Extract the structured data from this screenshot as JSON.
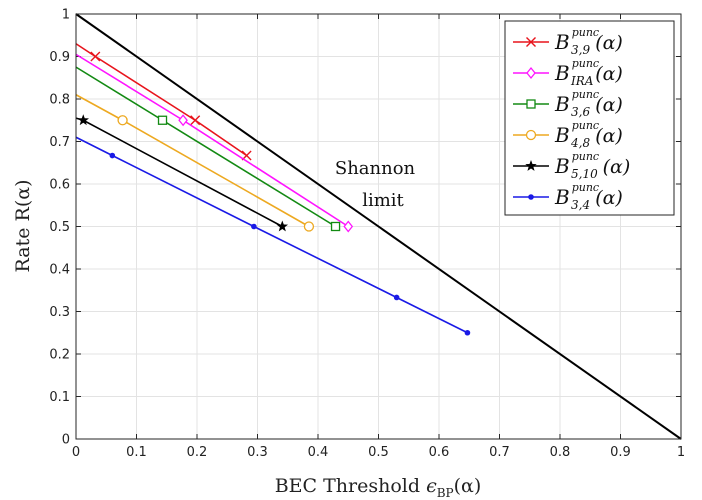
{
  "chart_data": {
    "type": "line",
    "xlabel": "BEC Threshold ϵBP(α)",
    "xlabel_main": "BEC Threshold ",
    "xlabel_sym": "ϵ",
    "xlabel_sub": "BP",
    "xlabel_arg": "(α)",
    "ylabel": "Rate R(α)",
    "xlim": [
      0,
      1
    ],
    "ylim": [
      0,
      1
    ],
    "x_ticks": [
      "0",
      "0.1",
      "0.2",
      "0.3",
      "0.4",
      "0.5",
      "0.6",
      "0.7",
      "0.8",
      "0.9",
      "1"
    ],
    "y_ticks": [
      "0",
      "0.1",
      "0.2",
      "0.3",
      "0.4",
      "0.5",
      "0.6",
      "0.7",
      "0.8",
      "0.9",
      "1"
    ],
    "grid": true,
    "legend_position": "top-right",
    "annotation": [
      "Shannon",
      "limit"
    ],
    "shannon_limit": {
      "color": "#000000",
      "points": [
        [
          0,
          1
        ],
        [
          1,
          0
        ]
      ]
    },
    "series": [
      {
        "name": "B^punc_{3,9}(α)",
        "label_main": "B",
        "label_sup": "punc",
        "label_sub": "3,9",
        "label_arg": "(α)",
        "color": "#e8141c",
        "marker": "x",
        "points": [
          [
            0,
            0.93
          ],
          [
            0.032,
            0.9
          ],
          [
            0.197,
            0.75
          ],
          [
            0.282,
            0.667
          ]
        ]
      },
      {
        "name": "B^punc_{IRA}(α)",
        "label_main": "B",
        "label_sup": "punc",
        "label_sub": "IRA",
        "label_arg": "(α)",
        "color": "#ff14ff",
        "marker": "diamond",
        "points": [
          [
            0,
            0.905
          ],
          [
            0.177,
            0.75
          ],
          [
            0.45,
            0.5
          ]
        ]
      },
      {
        "name": "B^punc_{3,6}(α)",
        "label_main": "B",
        "label_sup": "punc",
        "label_sub": "3,6",
        "label_arg": "(α)",
        "color": "#138a13",
        "marker": "square",
        "points": [
          [
            0,
            0.875
          ],
          [
            0.143,
            0.75
          ],
          [
            0.429,
            0.5
          ]
        ]
      },
      {
        "name": "B^punc_{4,8}(α)",
        "label_main": "B",
        "label_sup": "punc",
        "label_sub": "4,8",
        "label_arg": "(α)",
        "color": "#eda921",
        "marker": "circle",
        "points": [
          [
            0,
            0.81
          ],
          [
            0.077,
            0.75
          ],
          [
            0.385,
            0.5
          ]
        ]
      },
      {
        "name": "B^punc_{5,10}(α)",
        "label_main": "B",
        "label_sup": "punc",
        "label_sub": "5,10",
        "label_arg": "(α)",
        "color": "#000000",
        "marker": "star",
        "points": [
          [
            0,
            0.755
          ],
          [
            0.012,
            0.75
          ],
          [
            0.341,
            0.5
          ]
        ]
      },
      {
        "name": "B^punc_{3,4}(α)",
        "label_main": "B",
        "label_sup": "punc",
        "label_sub": "3,4",
        "label_arg": "(α)",
        "color": "#1a1ae6",
        "marker": "dot",
        "points": [
          [
            0,
            0.71
          ],
          [
            0.06,
            0.667
          ],
          [
            0.294,
            0.5
          ],
          [
            0.53,
            0.333
          ],
          [
            0.647,
            0.25
          ]
        ]
      }
    ]
  }
}
